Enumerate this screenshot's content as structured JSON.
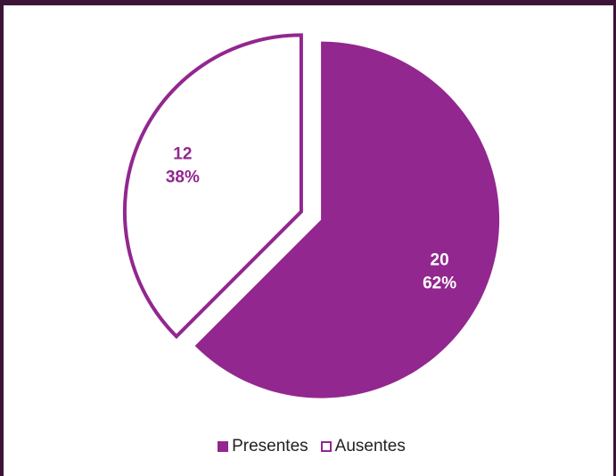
{
  "chart_data": {
    "type": "pie",
    "slices": [
      {
        "name": "Presentes",
        "value": 20,
        "percent": "62%",
        "color": "#92278f",
        "fill": "solid"
      },
      {
        "name": "Ausentes",
        "value": 12,
        "percent": "38%",
        "color": "#92278f",
        "fill": "outline"
      }
    ],
    "legend_position": "bottom",
    "exploded": true
  }
}
